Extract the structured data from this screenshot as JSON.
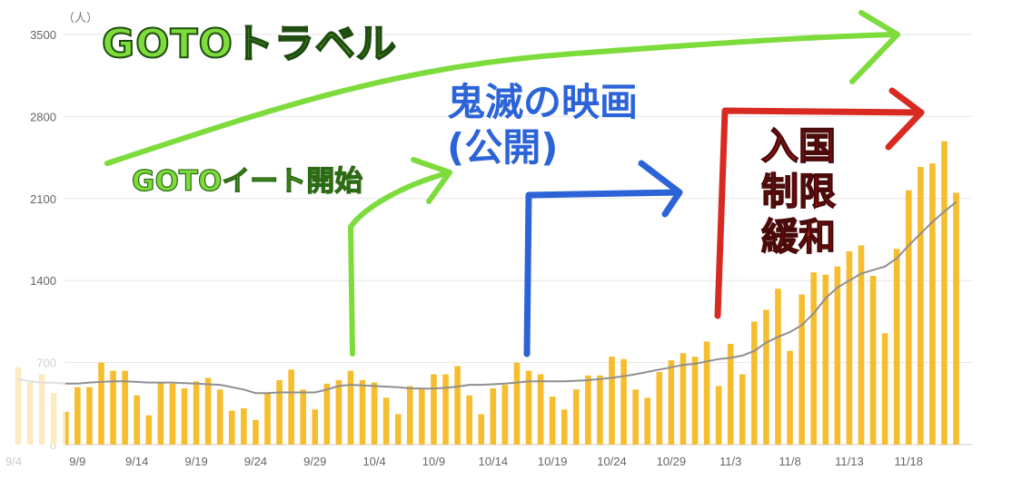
{
  "chart_data": {
    "type": "bar",
    "unit_label": "（人）",
    "ylim": [
      0,
      3500
    ],
    "yticks": [
      0,
      700,
      1400,
      2100,
      2800,
      3500
    ],
    "x_tick_labels": [
      "9/4",
      "9/9",
      "9/14",
      "9/19",
      "9/24",
      "9/29",
      "10/4",
      "10/9",
      "10/14",
      "10/19",
      "10/24",
      "10/29",
      "11/3",
      "11/8",
      "11/13",
      "11/18"
    ],
    "categories": [
      "9/4",
      "9/5",
      "9/6",
      "9/7",
      "9/8",
      "9/9",
      "9/10",
      "9/11",
      "9/12",
      "9/13",
      "9/14",
      "9/15",
      "9/16",
      "9/17",
      "9/18",
      "9/19",
      "9/20",
      "9/21",
      "9/22",
      "9/23",
      "9/24",
      "9/25",
      "9/26",
      "9/27",
      "9/28",
      "9/29",
      "9/30",
      "10/1",
      "10/2",
      "10/3",
      "10/4",
      "10/5",
      "10/6",
      "10/7",
      "10/8",
      "10/9",
      "10/10",
      "10/11",
      "10/12",
      "10/13",
      "10/14",
      "10/15",
      "10/16",
      "10/17",
      "10/18",
      "10/19",
      "10/20",
      "10/21",
      "10/22",
      "10/23",
      "10/24",
      "10/25",
      "10/26",
      "10/27",
      "10/28",
      "10/29",
      "10/30",
      "10/31",
      "11/1",
      "11/2",
      "11/3",
      "11/4",
      "11/5",
      "11/6",
      "11/7",
      "11/8",
      "11/9",
      "11/10",
      "11/11",
      "11/12",
      "11/13",
      "11/14",
      "11/15",
      "11/16",
      "11/17",
      "11/18",
      "11/19",
      "11/20",
      "11/21",
      "11/22"
    ],
    "series": [
      {
        "type": "bar",
        "color": "#f6bd2e",
        "values": [
          660,
          530,
          600,
          440,
          280,
          490,
          490,
          700,
          630,
          630,
          420,
          250,
          530,
          520,
          480,
          540,
          570,
          470,
          290,
          310,
          210,
          440,
          550,
          640,
          470,
          300,
          520,
          550,
          630,
          550,
          530,
          400,
          260,
          500,
          480,
          600,
          600,
          670,
          420,
          260,
          480,
          510,
          700,
          630,
          600,
          410,
          300,
          470,
          590,
          590,
          750,
          730,
          470,
          400,
          620,
          720,
          780,
          750,
          880,
          500,
          860,
          600,
          1050,
          1150,
          1330,
          800,
          1280,
          1470,
          1450,
          1520,
          1650,
          1700,
          1440,
          950,
          1670,
          2170,
          2370,
          2400,
          2590,
          2150
        ]
      },
      {
        "type": "line",
        "color": "#8f8f8f",
        "values": [
          560,
          540,
          530,
          530,
          520,
          520,
          530,
          535,
          540,
          540,
          535,
          530,
          530,
          530,
          525,
          520,
          515,
          510,
          490,
          470,
          440,
          440,
          445,
          445,
          445,
          445,
          470,
          500,
          510,
          505,
          500,
          495,
          490,
          480,
          478,
          478,
          485,
          495,
          510,
          510,
          515,
          520,
          530,
          540,
          540,
          540,
          540,
          545,
          550,
          560,
          570,
          585,
          600,
          620,
          640,
          660,
          680,
          690,
          710,
          730,
          740,
          760,
          800,
          870,
          920,
          960,
          1020,
          1120,
          1250,
          1340,
          1400,
          1460,
          1490,
          1520,
          1590,
          1700,
          1800,
          1900,
          1990,
          2070
        ]
      }
    ],
    "annotations": [
      {
        "text": "GOTOトラベル",
        "color": "#7ddc3c"
      },
      {
        "text": "GOTOイート開始",
        "color": "#7ddc3c"
      },
      {
        "text": "鬼滅の映画",
        "color": "#2c64d8"
      },
      {
        "text": "(公開)",
        "color": "#2c64d8"
      },
      {
        "text": "入国",
        "color": "#d91c1c"
      },
      {
        "text": "制限",
        "color": "#d91c1c"
      },
      {
        "text": "緩和",
        "color": "#d91c1c"
      }
    ]
  }
}
